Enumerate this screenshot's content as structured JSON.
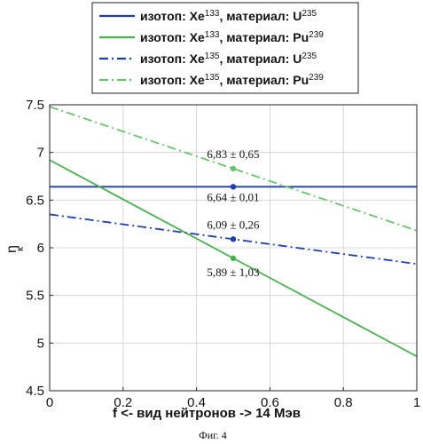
{
  "chart_data": {
    "type": "line",
    "xlabel": "f <- вид нейтронов -> 14 Мэв",
    "ylabel_main": "η",
    "ylabel_sub": "к",
    "xlim": [
      0,
      1
    ],
    "ylim": [
      4.5,
      7.5
    ],
    "xticks": [
      "0",
      "0.2",
      "0.4",
      "0.6",
      "0.8",
      "1"
    ],
    "yticks": [
      "4.5",
      "5",
      "5.5",
      "6",
      "6.5",
      "7",
      "7.5"
    ],
    "grid": true,
    "legend_position": "top-center",
    "series": [
      {
        "name": "изотоп: Xe133, материал: U235",
        "legend": {
          "p1": "изотоп: Xe",
          "iso": "133",
          "p2": ", материал: U",
          "mat": "235"
        },
        "color": "#1f3fa8",
        "style": "solid",
        "x": [
          0,
          1
        ],
        "y": [
          6.64,
          6.64
        ],
        "marker": {
          "x": 0.5,
          "y": 6.64,
          "label": "6,64 ± 0,01"
        }
      },
      {
        "name": "изотоп: Xe133, материал: Pu239",
        "legend": {
          "p1": "изотоп: Xe",
          "iso": "133",
          "p2": ", материал: Pu",
          "mat": "239"
        },
        "color": "#4caf50",
        "style": "solid",
        "x": [
          0,
          1
        ],
        "y": [
          6.92,
          4.86
        ],
        "marker": {
          "x": 0.5,
          "y": 5.89,
          "label": "5,89 ± 1,03"
        }
      },
      {
        "name": "изотоп: Xe135, материал: U235",
        "legend": {
          "p1": "изотоп: Xe",
          "iso": "135",
          "p2": ", материал: U",
          "mat": "235"
        },
        "color": "#1f3fa8",
        "style": "dashdot",
        "x": [
          0,
          1
        ],
        "y": [
          6.35,
          5.83
        ],
        "marker": {
          "x": 0.5,
          "y": 6.09,
          "label": "6,09 ± 0,26"
        }
      },
      {
        "name": "изотоп: Xe135, материал: Pu239",
        "legend": {
          "p1": "изотоп: Xe",
          "iso": "135",
          "p2": ", материал: Pu",
          "mat": "239"
        },
        "color": "#6cc070",
        "style": "dashdot",
        "x": [
          0,
          1
        ],
        "y": [
          7.48,
          6.18
        ],
        "marker": {
          "x": 0.5,
          "y": 6.83,
          "label": "6,83 ± 0,65"
        }
      }
    ],
    "caption": "Фиг. 4"
  }
}
